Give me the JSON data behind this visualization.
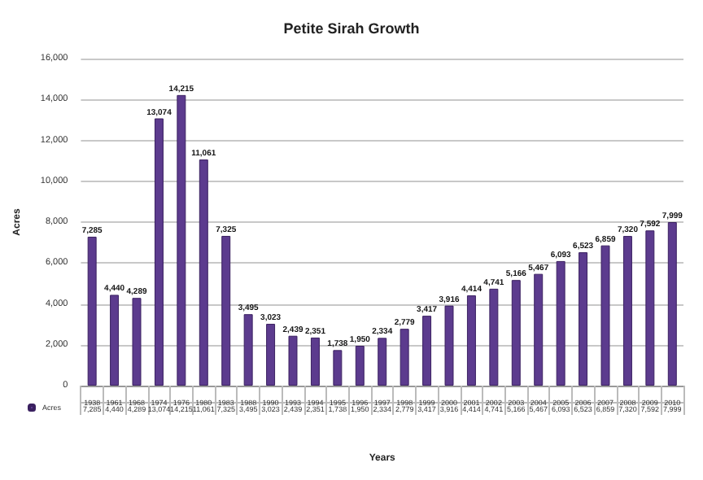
{
  "chart_data": {
    "type": "bar",
    "title": "Petite Sirah Growth",
    "xlabel": "Years",
    "ylabel": "Acres",
    "categories": [
      "1938",
      "1961",
      "1968",
      "1974",
      "1976",
      "1980",
      "1983",
      "1988",
      "1990",
      "1993",
      "1994",
      "1995",
      "1996",
      "1997",
      "1998",
      "1999",
      "2000",
      "2001",
      "2002",
      "2003",
      "2004",
      "2005",
      "2006",
      "2007",
      "2008",
      "2009",
      "2010"
    ],
    "series": [
      {
        "name": "Acres",
        "color": "#5c3b8e",
        "values": [
          7285,
          4440,
          4289,
          13074,
          14215,
          11061,
          7325,
          3495,
          3023,
          2439,
          2351,
          1738,
          1950,
          2334,
          2779,
          3417,
          3916,
          4414,
          4741,
          5166,
          5467,
          6093,
          6523,
          6859,
          7320,
          7592,
          7999
        ],
        "value_labels": [
          "7,285",
          "4,440",
          "4,289",
          "13,074",
          "14,215",
          "11,061",
          "7,325",
          "3,495",
          "3,023",
          "2,439",
          "2,351",
          "1,738",
          "1,950",
          "2,334",
          "2,779",
          "3,417",
          "3,916",
          "4,414",
          "4,741",
          "5,166",
          "5,467",
          "6,093",
          "6,523",
          "6,859",
          "7,320",
          "7,592",
          "7,999"
        ]
      }
    ],
    "ylim": [
      0,
      16000
    ],
    "yticks": [
      0,
      {
        "value": 2000,
        "label": "2,000"
      },
      {
        "value": 4000,
        "label": "4,000"
      },
      {
        "value": 6000,
        "label": "6,000"
      },
      {
        "value": 8000,
        "label": "8,000"
      },
      {
        "value": 10000,
        "label": "10,000"
      },
      {
        "value": 12000,
        "label": "12,000"
      },
      {
        "value": 14000,
        "label": "14,000"
      },
      {
        "value": 16000,
        "label": "16,000"
      }
    ],
    "grid": "y",
    "legend": "bottom left"
  }
}
